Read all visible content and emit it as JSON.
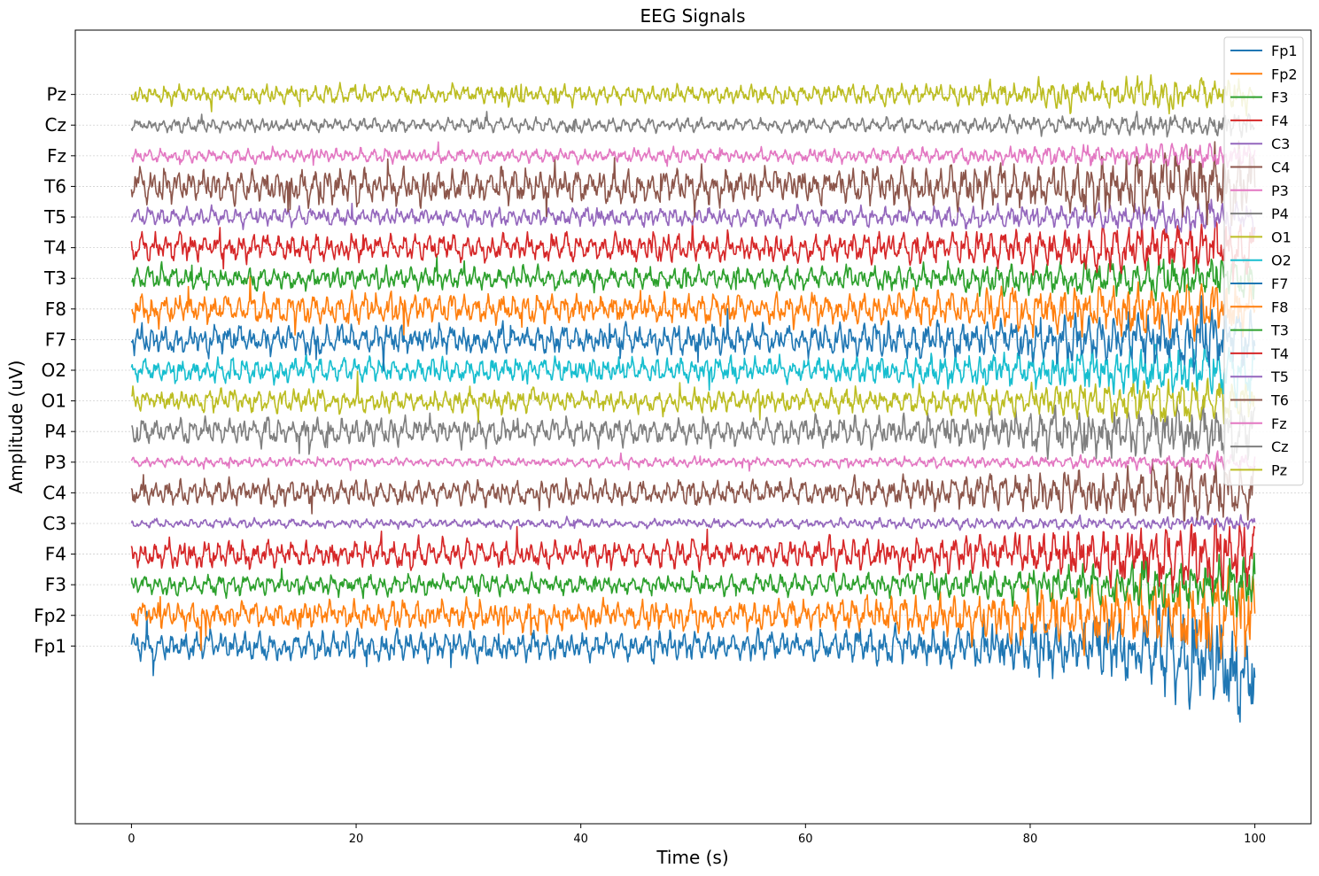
{
  "chart_data": {
    "type": "line",
    "title": "EEG Signals",
    "xlabel": "Time (s)",
    "ylabel": "Amplitude (uV)",
    "xlim": [
      -5,
      105
    ],
    "x_ticks": [
      0,
      20,
      40,
      60,
      80,
      100
    ],
    "x_range": [
      0,
      100
    ],
    "channel_spacing": 1,
    "ylim": [
      -5.8,
      20.1
    ],
    "grid": "horizontal at channel offsets",
    "legend_position": "top-right",
    "series": [
      {
        "name": "Fp1",
        "offset": 0,
        "color": "#1f77b4"
      },
      {
        "name": "Fp2",
        "offset": 1,
        "color": "#ff7f0e"
      },
      {
        "name": "F3",
        "offset": 2,
        "color": "#2ca02c"
      },
      {
        "name": "F4",
        "offset": 3,
        "color": "#d62728"
      },
      {
        "name": "C3",
        "offset": 4,
        "color": "#9467bd"
      },
      {
        "name": "C4",
        "offset": 5,
        "color": "#8c564b"
      },
      {
        "name": "P3",
        "offset": 6,
        "color": "#e377c2"
      },
      {
        "name": "P4",
        "offset": 7,
        "color": "#7f7f7f"
      },
      {
        "name": "O1",
        "offset": 8,
        "color": "#bcbd22"
      },
      {
        "name": "O2",
        "offset": 9,
        "color": "#17becf"
      },
      {
        "name": "F7",
        "offset": 10,
        "color": "#1f77b4"
      },
      {
        "name": "F8",
        "offset": 11,
        "color": "#ff7f0e"
      },
      {
        "name": "T3",
        "offset": 12,
        "color": "#2ca02c"
      },
      {
        "name": "T4",
        "offset": 13,
        "color": "#d62728"
      },
      {
        "name": "T5",
        "offset": 14,
        "color": "#9467bd"
      },
      {
        "name": "T6",
        "offset": 15,
        "color": "#8c564b"
      },
      {
        "name": "Fz",
        "offset": 16,
        "color": "#e377c2"
      },
      {
        "name": "Cz",
        "offset": 17,
        "color": "#7f7f7f"
      },
      {
        "name": "Pz",
        "offset": 18,
        "color": "#bcbd22"
      }
    ]
  }
}
